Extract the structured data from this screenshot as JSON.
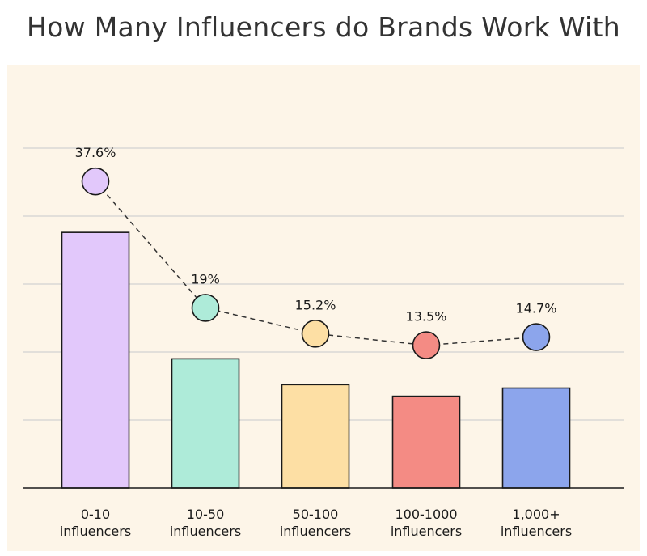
{
  "title": "How Many Influencers do Brands Work With",
  "colors": {
    "panel_background": "#fdf5e8",
    "gridline": "#d2d2d2",
    "axis": "#1a1a1a",
    "outline": "#1a1a1a"
  },
  "chart_data": {
    "type": "bar",
    "title": "How Many Influencers do Brands Work With",
    "xlabel": "",
    "ylabel": "",
    "ylim": [
      0,
      50
    ],
    "grid": true,
    "categories": [
      [
        "0-10",
        "influencers"
      ],
      [
        "10-50",
        "influencers"
      ],
      [
        "50-100",
        "influencers"
      ],
      [
        "100-1000",
        "influencers"
      ],
      [
        "1,000+",
        "influencers"
      ]
    ],
    "values": [
      37.6,
      19,
      15.2,
      13.5,
      14.7
    ],
    "value_labels": [
      "37.6%",
      "19%",
      "15.2%",
      "13.5%",
      "14.7%"
    ],
    "colors": [
      "#e2c8fb",
      "#aeebd9",
      "#fddfa4",
      "#f48b84",
      "#8ca5ec"
    ],
    "overlay": {
      "type": "line",
      "style": "dashed",
      "marker": "circle",
      "values": [
        37.6,
        19,
        15.2,
        13.5,
        14.7
      ]
    }
  }
}
